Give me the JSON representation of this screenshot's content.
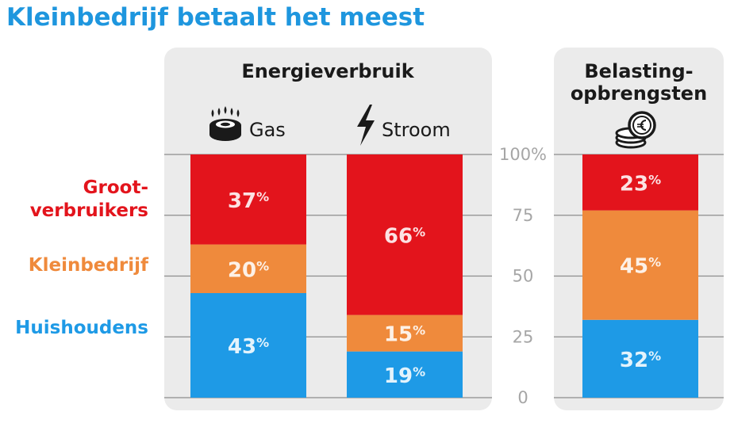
{
  "title": "Kleinbedrijf betaalt het meest",
  "colors": {
    "title": "#1e96de",
    "grootverbruikers": "#e3141c",
    "kleinbedrijf": "#ef8a3c",
    "huishoudens": "#1e9ae6",
    "panel_bg": "#ebebeb",
    "gridline": "#8c8c8c",
    "tick_text": "#a6a6a6"
  },
  "chart_data": {
    "type": "bar",
    "stacked": true,
    "percent_stacked": true,
    "title": "Kleinbedrijf betaalt het meest",
    "panels": [
      {
        "title_lines": [
          "Energieverbruik"
        ],
        "categories": [
          "Gas",
          "Stroom"
        ],
        "icons": [
          "gas-burner-icon",
          "lightning-icon"
        ]
      },
      {
        "title_lines": [
          "Belasting-",
          "opbrengsten"
        ],
        "categories": [
          ""
        ],
        "icons": [
          "coins-icon"
        ]
      }
    ],
    "series": [
      {
        "name": "Huishoudens",
        "color": "#1e9ae6",
        "values": [
          43,
          19,
          32
        ]
      },
      {
        "name": "Kleinbedrijf",
        "color": "#ef8a3c",
        "values": [
          20,
          15,
          45
        ]
      },
      {
        "name": "Groot-verbruikers",
        "color": "#e3141c",
        "values": [
          37,
          66,
          23
        ]
      }
    ],
    "series_label_lines": {
      "Huishoudens": [
        "Huishoudens"
      ],
      "Kleinbedrijf": [
        "Kleinbedrijf"
      ],
      "Groot-verbruikers": [
        "Groot-",
        "verbruikers"
      ]
    },
    "yticks": [
      "0",
      "25",
      "50",
      "75",
      "100%"
    ],
    "ytick_values": [
      0,
      25,
      50,
      75,
      100
    ],
    "ylim": [
      0,
      100
    ],
    "value_suffix": "%",
    "grid": true
  }
}
